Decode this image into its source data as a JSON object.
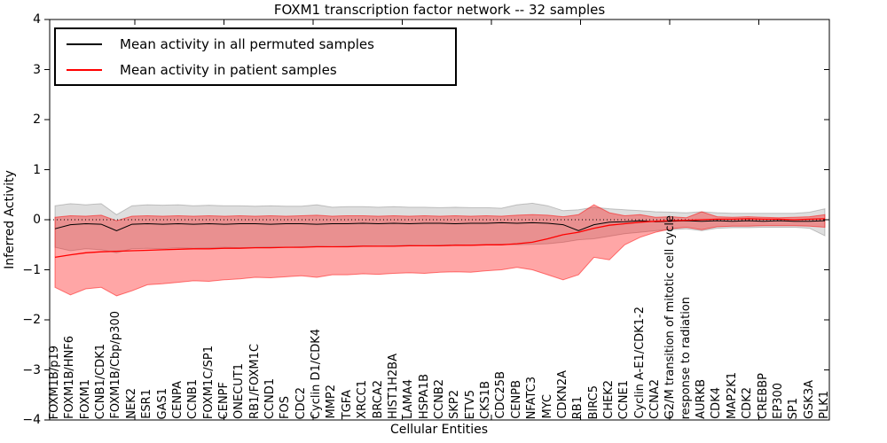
{
  "chart_data": {
    "type": "line",
    "title": "FOXM1 transcription factor network -- 32 samples",
    "xlabel": "Cellular Entities",
    "ylabel": "Inferred Activity",
    "ylim": [
      -4,
      4
    ],
    "ytick_values": [
      4,
      3,
      2,
      1,
      0,
      -1,
      -2,
      -3,
      -4
    ],
    "ytick_labels": [
      "4",
      "3",
      "2",
      "1",
      "0",
      "−1",
      "−2",
      "−3",
      "−4"
    ],
    "grid": false,
    "zero_line": "dotted",
    "legend_position": "upper left",
    "categories": [
      "FOXM1B/p19",
      "FOXM1B/HNF6",
      "FOXM1",
      "CCNB1/CDK1",
      "FOXM1B/Cbp/p300",
      "NEK2",
      "ESR1",
      "GAS1",
      "CENPA",
      "CCNB1",
      "FOXM1C/SP1",
      "CENPF",
      "ONECUT1",
      "RB1/FOXM1C",
      "CCND1",
      "FOS",
      "CDC2",
      "Cyclin D1/CDK4",
      "MMP2",
      "TGFA",
      "XRCC1",
      "BRCA2",
      "HIST1H2BA",
      "LAMA4",
      "HSPA1B",
      "CCNB2",
      "SKP2",
      "ETV5",
      "CKS1B",
      "CDC25B",
      "CENPB",
      "NFATC3",
      "MYC",
      "CDKN2A",
      "RB1",
      "BIRC5",
      "CHEK2",
      "CCNE1",
      "Cyclin A-E1/CDK1-2",
      "CCNA2",
      "G2/M transition of mitotic cell cycle",
      "response to radiation",
      "AURKB",
      "CDK4",
      "MAP2K1",
      "CDK2",
      "CREBBP",
      "EP300",
      "SP1",
      "GSK3A",
      "PLK1"
    ],
    "series": [
      {
        "name": "Mean activity in all permuted samples",
        "color": "#000000",
        "line_width": 1,
        "values": [
          -0.18,
          -0.1,
          -0.08,
          -0.09,
          -0.22,
          -0.09,
          -0.08,
          -0.09,
          -0.08,
          -0.09,
          -0.08,
          -0.09,
          -0.08,
          -0.08,
          -0.09,
          -0.08,
          -0.08,
          -0.09,
          -0.08,
          -0.08,
          -0.07,
          -0.08,
          -0.07,
          -0.08,
          -0.07,
          -0.07,
          -0.08,
          -0.07,
          -0.07,
          -0.06,
          -0.07,
          -0.06,
          -0.07,
          -0.1,
          -0.22,
          -0.1,
          -0.05,
          -0.04,
          -0.02,
          -0.04,
          -0.03,
          -0.02,
          -0.03,
          -0.02,
          -0.03,
          -0.02,
          -0.03,
          -0.02,
          -0.03,
          -0.03,
          -0.02
        ],
        "band": {
          "fill": "#000000",
          "opacity": 0.13,
          "edge_opacity": 0.2,
          "upper": [
            0.28,
            0.32,
            0.3,
            0.32,
            0.1,
            0.28,
            0.3,
            0.29,
            0.3,
            0.28,
            0.29,
            0.28,
            0.28,
            0.27,
            0.28,
            0.27,
            0.27,
            0.3,
            0.25,
            0.26,
            0.26,
            0.25,
            0.26,
            0.25,
            0.25,
            0.24,
            0.25,
            0.24,
            0.24,
            0.23,
            0.3,
            0.33,
            0.28,
            0.18,
            0.2,
            0.25,
            0.22,
            0.2,
            0.18,
            0.16,
            0.15,
            0.14,
            0.16,
            0.14,
            0.13,
            0.13,
            0.13,
            0.13,
            0.13,
            0.15,
            0.22
          ],
          "lower": [
            -0.55,
            -0.62,
            -0.58,
            -0.6,
            -0.66,
            -0.58,
            -0.57,
            -0.58,
            -0.56,
            -0.57,
            -0.56,
            -0.55,
            -0.56,
            -0.55,
            -0.54,
            -0.55,
            -0.54,
            -0.53,
            -0.54,
            -0.53,
            -0.52,
            -0.53,
            -0.52,
            -0.51,
            -0.52,
            -0.51,
            -0.5,
            -0.51,
            -0.5,
            -0.49,
            -0.5,
            -0.49,
            -0.48,
            -0.45,
            -0.4,
            -0.38,
            -0.33,
            -0.28,
            -0.25,
            -0.22,
            -0.2,
            -0.18,
            -0.22,
            -0.17,
            -0.16,
            -0.16,
            -0.15,
            -0.15,
            -0.15,
            -0.17,
            -0.32
          ]
        }
      },
      {
        "name": "Mean activity in patient samples",
        "color": "#ff0000",
        "line_width": 1.3,
        "values": [
          -0.75,
          -0.7,
          -0.66,
          -0.64,
          -0.63,
          -0.62,
          -0.61,
          -0.6,
          -0.59,
          -0.58,
          -0.58,
          -0.57,
          -0.57,
          -0.56,
          -0.56,
          -0.55,
          -0.55,
          -0.54,
          -0.54,
          -0.54,
          -0.53,
          -0.53,
          -0.53,
          -0.52,
          -0.52,
          -0.52,
          -0.51,
          -0.51,
          -0.5,
          -0.5,
          -0.48,
          -0.45,
          -0.38,
          -0.3,
          -0.25,
          -0.17,
          -0.11,
          -0.08,
          -0.05,
          -0.03,
          -0.02,
          -0.01,
          0.0,
          0.01,
          0.01,
          0.02,
          0.01,
          0.01,
          0.0,
          0.01,
          0.02
        ],
        "band": {
          "fill": "#ff0000",
          "opacity": 0.35,
          "edge_opacity": 0.5,
          "upper": [
            0.05,
            0.08,
            0.07,
            0.09,
            -0.02,
            0.07,
            0.08,
            0.07,
            0.08,
            0.07,
            0.08,
            0.07,
            0.08,
            0.07,
            0.08,
            0.07,
            0.08,
            0.09,
            0.07,
            0.08,
            0.08,
            0.07,
            0.08,
            0.07,
            0.08,
            0.07,
            0.08,
            0.07,
            0.08,
            0.07,
            0.09,
            0.1,
            0.09,
            0.06,
            0.1,
            0.3,
            0.14,
            0.08,
            0.1,
            0.05,
            0.06,
            0.04,
            0.16,
            0.06,
            0.05,
            0.06,
            0.05,
            0.04,
            0.05,
            0.06,
            0.1
          ],
          "lower": [
            -1.35,
            -1.5,
            -1.38,
            -1.35,
            -1.52,
            -1.42,
            -1.3,
            -1.28,
            -1.25,
            -1.22,
            -1.23,
            -1.2,
            -1.18,
            -1.15,
            -1.16,
            -1.14,
            -1.12,
            -1.15,
            -1.1,
            -1.1,
            -1.08,
            -1.09,
            -1.07,
            -1.06,
            -1.07,
            -1.05,
            -1.04,
            -1.05,
            -1.02,
            -1.0,
            -0.95,
            -1.0,
            -1.1,
            -1.2,
            -1.1,
            -0.75,
            -0.8,
            -0.5,
            -0.35,
            -0.25,
            -0.18,
            -0.15,
            -0.2,
            -0.14,
            -0.13,
            -0.13,
            -0.12,
            -0.12,
            -0.12,
            -0.13,
            -0.15
          ]
        }
      }
    ]
  }
}
